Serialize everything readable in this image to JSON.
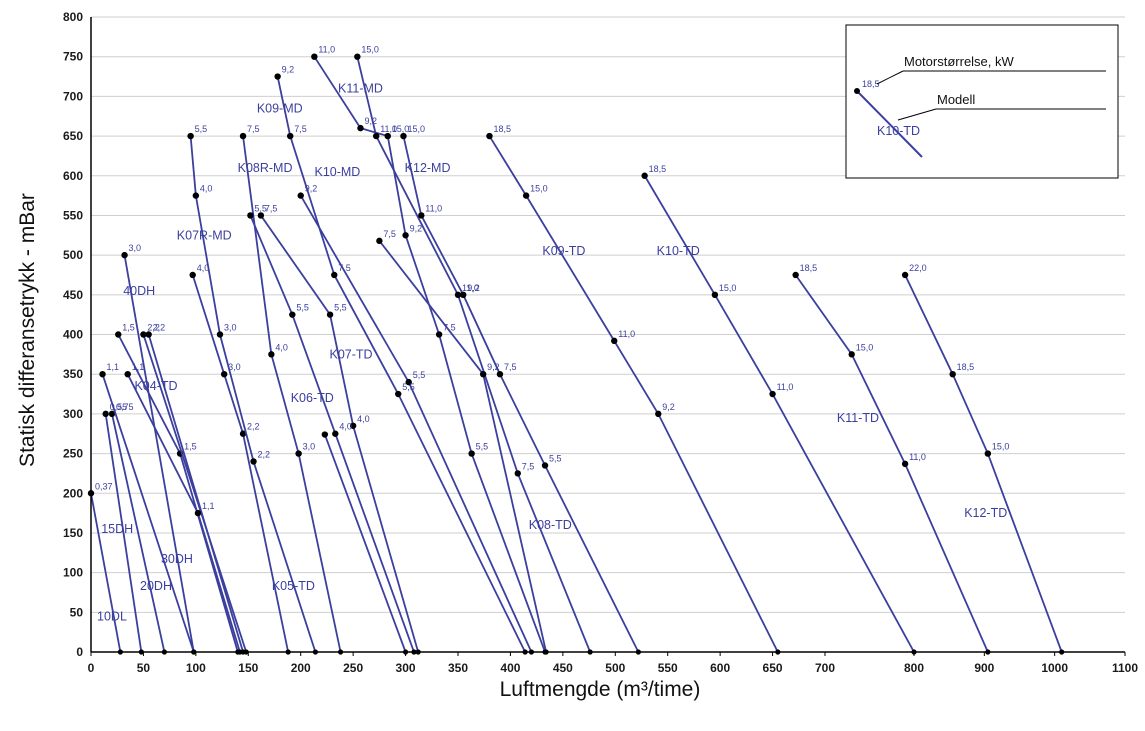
{
  "chart_data": {
    "type": "line",
    "xlabel": "Luftmengde  (m³/time)",
    "ylabel": "Statisk differansetrykk  - mBar",
    "xlim": [
      0,
      1100
    ],
    "ylim": [
      0,
      800
    ],
    "x_ticks": [
      0,
      50,
      100,
      150,
      200,
      250,
      300,
      350,
      400,
      450,
      500,
      550,
      600,
      650,
      700,
      800,
      900,
      1000,
      1100
    ],
    "y_ticks": [
      0,
      50,
      100,
      150,
      200,
      250,
      300,
      350,
      400,
      450,
      500,
      550,
      600,
      650,
      700,
      750,
      800
    ],
    "grid": "horizontal",
    "series_color": "#3b3f9e",
    "legend": {
      "sample_label": "K10-TD",
      "sample_power": "18,5",
      "motor_caption": "Motorstørrelse, kW",
      "model_caption": "Modell"
    },
    "series": [
      {
        "name": "10DL",
        "points": [
          [
            0,
            200
          ],
          [
            28,
            0
          ]
        ],
        "markers": [
          {
            "x": 0,
            "y": 200,
            "label": "0,37"
          }
        ]
      },
      {
        "name": "15DH",
        "points": [
          [
            14,
            300
          ],
          [
            48,
            0
          ]
        ],
        "markers": [
          {
            "x": 14,
            "y": 300,
            "label": "0,55"
          }
        ]
      },
      {
        "name": "20DH",
        "points": [
          [
            20,
            300
          ],
          [
            70,
            0
          ]
        ],
        "markers": [
          {
            "x": 20,
            "y": 300,
            "label": "0,75"
          }
        ]
      },
      {
        "name": "30DH",
        "points": [
          [
            11,
            350
          ],
          [
            98,
            0
          ]
        ],
        "markers": [
          {
            "x": 11,
            "y": 350,
            "label": "1,1"
          }
        ]
      },
      {
        "name": "K04-TD",
        "points": [
          [
            26,
            400
          ],
          [
            85,
            250
          ],
          [
            140,
            0
          ]
        ],
        "markers": [
          {
            "x": 26,
            "y": 400,
            "label": "1,5"
          },
          {
            "x": 85,
            "y": 250,
            "label": "1,5"
          }
        ]
      },
      {
        "name": "40DH",
        "points": [
          [
            32,
            500
          ],
          [
            98,
            0
          ]
        ],
        "markers": [
          {
            "x": 32,
            "y": 500,
            "label": "3,0"
          }
        ]
      },
      {
        "name": "",
        "points": [
          [
            50,
            400
          ],
          [
            148,
            0
          ]
        ],
        "markers": [
          {
            "x": 50,
            "y": 400,
            "label": "2,2"
          }
        ]
      },
      {
        "name": "",
        "points": [
          [
            55,
            400
          ],
          [
            145,
            0
          ]
        ],
        "markers": [
          {
            "x": 55,
            "y": 400,
            "label": "2,2"
          }
        ]
      },
      {
        "name": "",
        "points": [
          [
            35,
            350
          ],
          [
            102,
            175
          ],
          [
            142,
            0
          ]
        ],
        "markers": [
          {
            "x": 35,
            "y": 350,
            "label": "1,1"
          },
          {
            "x": 102,
            "y": 175,
            "label": "1,1"
          }
        ]
      },
      {
        "name": "K07R-MD",
        "points": [
          [
            97,
            475
          ],
          [
            127,
            350
          ],
          [
            145,
            275
          ],
          [
            188,
            0
          ]
        ],
        "markers": [
          {
            "x": 97,
            "y": 475,
            "label": "4,0"
          },
          {
            "x": 127,
            "y": 350,
            "label": "3,0"
          },
          {
            "x": 145,
            "y": 275,
            "label": "2,2"
          }
        ]
      },
      {
        "name": "",
        "points": [
          [
            95,
            650
          ],
          [
            100,
            575
          ],
          [
            123,
            400
          ],
          [
            155,
            240
          ],
          [
            214,
            0
          ]
        ],
        "markers": [
          {
            "x": 95,
            "y": 650,
            "label": "5,5"
          },
          {
            "x": 100,
            "y": 575,
            "label": "4,0"
          },
          {
            "x": 123,
            "y": 400,
            "label": "3,0"
          },
          {
            "x": 155,
            "y": 240,
            "label": "2,2"
          }
        ]
      },
      {
        "name": "K08R-MD",
        "points": [
          [
            145,
            650
          ],
          [
            172,
            375
          ],
          [
            198,
            250
          ],
          [
            238,
            0
          ]
        ],
        "markers": [
          {
            "x": 145,
            "y": 650,
            "label": "7,5"
          },
          {
            "x": 172,
            "y": 375,
            "label": "4,0"
          },
          {
            "x": 198,
            "y": 250,
            "label": "3,0"
          }
        ]
      },
      {
        "name": "K05-TD",
        "points": [
          [
            152,
            550
          ],
          [
            192,
            425
          ],
          [
            233,
            275
          ],
          [
            308,
            0
          ]
        ],
        "markers": [
          {
            "x": 152,
            "y": 550,
            "label": "5,5"
          },
          {
            "x": 192,
            "y": 425,
            "label": "5,5"
          },
          {
            "x": 233,
            "y": 275,
            "label": "4,0"
          }
        ]
      },
      {
        "name": "K06-TD",
        "points": [
          [
            162,
            550
          ],
          [
            228,
            425
          ],
          [
            250,
            285
          ],
          [
            312,
            0
          ]
        ],
        "markers": [
          {
            "x": 162,
            "y": 550,
            "label": "7,5"
          },
          {
            "x": 228,
            "y": 425,
            "label": "5,5"
          },
          {
            "x": 250,
            "y": 285,
            "label": "4,0"
          }
        ]
      },
      {
        "name": "K09-MD",
        "points": [
          [
            178,
            725
          ],
          [
            190,
            650
          ],
          [
            232,
            475
          ],
          [
            293,
            325
          ],
          [
            414,
            0
          ]
        ],
        "markers": [
          {
            "x": 178,
            "y": 725,
            "label": "9,2"
          },
          {
            "x": 190,
            "y": 650,
            "label": "7,5"
          },
          {
            "x": 232,
            "y": 475,
            "label": "7,5"
          },
          {
            "x": 293,
            "y": 325,
            "label": "5,5"
          }
        ]
      },
      {
        "name": "K07-TD",
        "points": [
          [
            200,
            575
          ],
          [
            303,
            340
          ],
          [
            420,
            0
          ]
        ],
        "markers": [
          {
            "x": 200,
            "y": 575,
            "label": "9,2"
          },
          {
            "x": 303,
            "y": 340,
            "label": "5,5"
          }
        ]
      },
      {
        "name": "K10-MD",
        "points": [
          [
            213,
            750
          ],
          [
            257,
            660
          ],
          [
            283,
            650
          ],
          [
            300,
            525
          ],
          [
            332,
            400
          ],
          [
            363,
            250
          ],
          [
            433,
            0
          ]
        ],
        "markers": [
          {
            "x": 213,
            "y": 750,
            "label": "11,0"
          },
          {
            "x": 257,
            "y": 660,
            "label": "9,2"
          },
          {
            "x": 283,
            "y": 650,
            "label": "15,0"
          },
          {
            "x": 300,
            "y": 525,
            "label": "9,2"
          },
          {
            "x": 332,
            "y": 400,
            "label": "7,5"
          },
          {
            "x": 363,
            "y": 250,
            "label": "5,5"
          }
        ]
      },
      {
        "name": "K11-MD",
        "points": [
          [
            254,
            750
          ],
          [
            272,
            650
          ],
          [
            350,
            450
          ],
          [
            407,
            225
          ],
          [
            476,
            0
          ]
        ],
        "markers": [
          {
            "x": 254,
            "y": 750,
            "label": "15,0"
          },
          {
            "x": 272,
            "y": 650,
            "label": "11,0"
          },
          {
            "x": 350,
            "y": 450,
            "label": "11,0"
          },
          {
            "x": 407,
            "y": 225,
            "label": "7,5"
          }
        ]
      },
      {
        "name": "K12-MD",
        "points": [
          [
            298,
            650
          ],
          [
            315,
            550
          ],
          [
            355,
            450
          ],
          [
            390,
            350
          ],
          [
            433,
            235
          ],
          [
            522,
            0
          ]
        ],
        "markers": [
          {
            "x": 298,
            "y": 650,
            "label": "15,0"
          },
          {
            "x": 315,
            "y": 550,
            "label": "11,0"
          },
          {
            "x": 355,
            "y": 450,
            "label": "9,2"
          },
          {
            "x": 390,
            "y": 350,
            "label": "7,5"
          },
          {
            "x": 433,
            "y": 235,
            "label": "5,5"
          }
        ]
      },
      {
        "name": "",
        "points": [
          [
            275,
            518
          ],
          [
            374,
            350
          ],
          [
            434,
            0
          ]
        ],
        "markers": [
          {
            "x": 275,
            "y": 518,
            "label": "7,5"
          },
          {
            "x": 374,
            "y": 350,
            "label": "9,2"
          }
        ]
      },
      {
        "name": "K08-TD",
        "points": [
          [
            223,
            274
          ],
          [
            300,
            0
          ]
        ],
        "markers": [
          {
            "x": 223,
            "y": 274,
            "label": ""
          }
        ]
      },
      {
        "name": "K09-TD",
        "points": [
          [
            380,
            650
          ],
          [
            415,
            575
          ],
          [
            499,
            392
          ],
          [
            541,
            300
          ],
          [
            655,
            0
          ]
        ],
        "markers": [
          {
            "x": 380,
            "y": 650,
            "label": "18,5"
          },
          {
            "x": 415,
            "y": 575,
            "label": "15,0"
          },
          {
            "x": 499,
            "y": 392,
            "label": "11,0"
          },
          {
            "x": 541,
            "y": 300,
            "label": "9,2"
          }
        ]
      },
      {
        "name": "K10-TD",
        "points": [
          [
            528,
            600
          ],
          [
            595,
            450
          ],
          [
            650,
            325
          ],
          [
            800,
            0
          ]
        ],
        "markers": [
          {
            "x": 528,
            "y": 600,
            "label": "18,5"
          },
          {
            "x": 595,
            "y": 450,
            "label": "15,0"
          },
          {
            "x": 650,
            "y": 325,
            "label": "11,0"
          }
        ]
      },
      {
        "name": "K11-TD",
        "points": [
          [
            672,
            475
          ],
          [
            730,
            375
          ],
          [
            790,
            237
          ],
          [
            905,
            0
          ]
        ],
        "markers": [
          {
            "x": 672,
            "y": 475,
            "label": "18,5"
          },
          {
            "x": 730,
            "y": 375,
            "label": "15,0"
          },
          {
            "x": 790,
            "y": 237,
            "label": "11,0"
          }
        ]
      },
      {
        "name": "K12-TD",
        "points": [
          [
            790,
            475
          ],
          [
            855,
            350
          ],
          [
            905,
            250
          ],
          [
            1010,
            0
          ]
        ],
        "markers": [
          {
            "x": 790,
            "y": 475,
            "label": "22,0"
          },
          {
            "x": 855,
            "y": 350,
            "label": "18,5"
          },
          {
            "x": 905,
            "y": 250,
            "label": "15,0"
          }
        ]
      }
    ]
  }
}
